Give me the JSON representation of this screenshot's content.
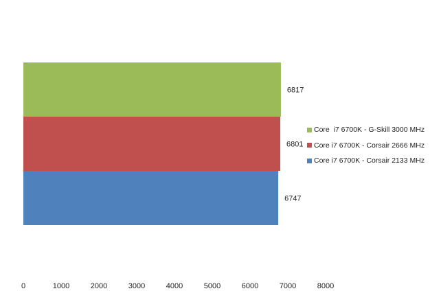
{
  "chart_data": {
    "type": "bar",
    "orientation": "horizontal",
    "title": "",
    "xlabel": "",
    "ylabel": "",
    "xlim": [
      0,
      8000
    ],
    "x_ticks": [
      "0",
      "1000",
      "2000",
      "3000",
      "4000",
      "5000",
      "6000",
      "7000",
      "8000"
    ],
    "grid": false,
    "legend_position": "right",
    "series": [
      {
        "name": "Core  i7 6700K - G-Skill 3000 MHz",
        "value": 6817,
        "label": "6817",
        "color": "#9bbb59"
      },
      {
        "name": "Core i7 6700K - Corsair 2666 MHz",
        "value": 6801,
        "label": "6801",
        "color": "#c0504d"
      },
      {
        "name": "Core i7 6700K - Corsair 2133 MHz",
        "value": 6747,
        "label": "6747",
        "color": "#4f81bd"
      }
    ]
  }
}
